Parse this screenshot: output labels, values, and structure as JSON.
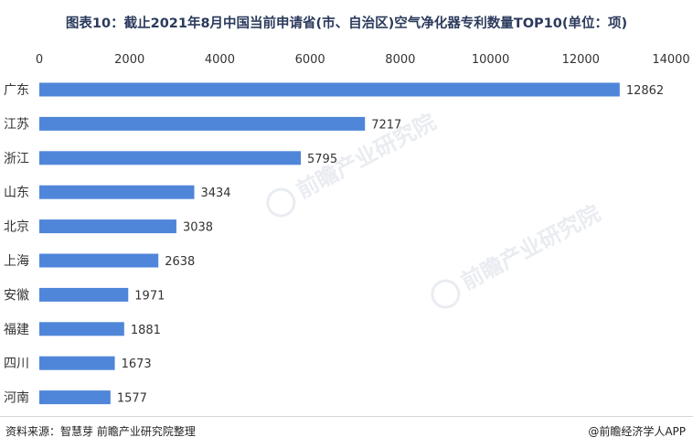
{
  "title": "图表10：截止2021年8月中国当前申请省(市、自治区)空气净化器专利数量TOP10(单位：项)",
  "source_left": "资料来源：智慧芽 前瞻产业研究院整理",
  "source_right": "@前瞻经济学人APP",
  "watermark": "前瞻产业研究院",
  "colors": {
    "bar": "#4f86d9",
    "axis_text": "#333333",
    "title": "#2b3a5c"
  },
  "chart_data": {
    "type": "bar",
    "orientation": "horizontal",
    "categories": [
      "广东",
      "江苏",
      "浙江",
      "山东",
      "北京",
      "上海",
      "安徽",
      "福建",
      "四川",
      "河南"
    ],
    "values": [
      12862,
      7217,
      5795,
      3434,
      3038,
      2638,
      1971,
      1881,
      1673,
      1577
    ],
    "xlim": [
      0,
      14000
    ],
    "x_ticks": [
      "0",
      "2000",
      "4000",
      "6000",
      "8000",
      "10000",
      "12000",
      "14000"
    ],
    "x_axis_position": "top",
    "grid": false,
    "data_labels": true
  }
}
